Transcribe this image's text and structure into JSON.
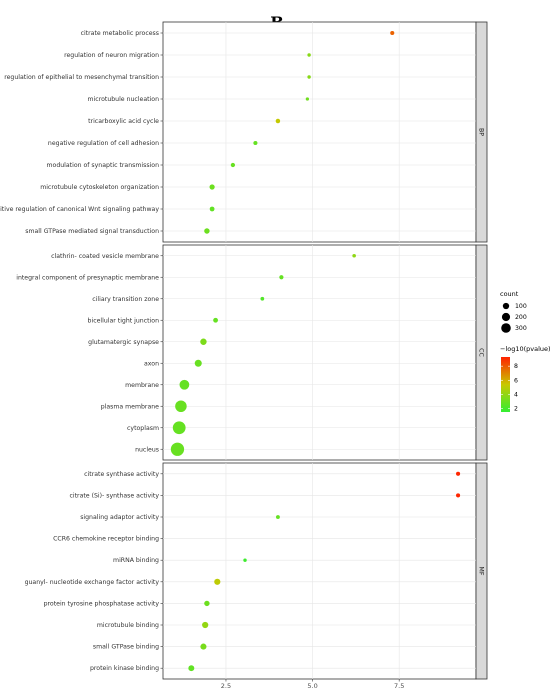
{
  "title": "B",
  "chart_data": {
    "type": "scatter",
    "title": "B",
    "xlabel": "",
    "ylabel": "",
    "xlim": [
      0,
      10
    ],
    "xticks": [
      2.5,
      5.0,
      7.5
    ],
    "xtick_labels": [
      "2.5",
      "5.0",
      "7.5"
    ],
    "size_legend": {
      "title": "count",
      "values": [
        100,
        200,
        300
      ],
      "labels": [
        "100",
        "200",
        "300"
      ]
    },
    "color_legend": {
      "title": "−log10(pvalue)",
      "min": 1.5,
      "max": 9.3,
      "ticks": [
        2,
        4,
        6,
        8
      ],
      "tick_labels": [
        "2",
        "4",
        "6",
        "8"
      ],
      "low_color": "#33ee33",
      "mid_color": "#c8c800",
      "high_color": "#ff2200"
    },
    "panels": [
      {
        "name": "BP",
        "terms": [
          {
            "label": "citrate metabolic process",
            "x": 7.3,
            "count": 8,
            "pvalue_log": 7.8
          },
          {
            "label": "regulation of neuron migration",
            "x": 4.9,
            "count": 3,
            "pvalue_log": 3.7
          },
          {
            "label": "regulation of epithelial to mesenchymal transition",
            "x": 4.9,
            "count": 3,
            "pvalue_log": 3.7
          },
          {
            "label": "microtubule nucleation",
            "x": 4.85,
            "count": 2,
            "pvalue_log": 3.1
          },
          {
            "label": "tricarboxylic acid cycle",
            "x": 4.0,
            "count": 12,
            "pvalue_log": 5.3
          },
          {
            "label": "negative regulation of cell adhesion",
            "x": 3.35,
            "count": 8,
            "pvalue_log": 2.8
          },
          {
            "label": "modulation of synaptic transmission",
            "x": 2.7,
            "count": 10,
            "pvalue_log": 2.9
          },
          {
            "label": "microtubule cytoskeleton organization",
            "x": 2.1,
            "count": 22,
            "pvalue_log": 3.0
          },
          {
            "label": "positive regulation of canonical Wnt signaling pathway",
            "x": 2.1,
            "count": 16,
            "pvalue_log": 2.7
          },
          {
            "label": "small GTPase mediated signal transduction",
            "x": 1.95,
            "count": 26,
            "pvalue_log": 3.0
          }
        ]
      },
      {
        "name": "CC",
        "terms": [
          {
            "label": "clathrin- coated vesicle membrane",
            "x": 6.2,
            "count": 4,
            "pvalue_log": 3.9
          },
          {
            "label": "integral component of presynaptic membrane",
            "x": 4.1,
            "count": 9,
            "pvalue_log": 2.8
          },
          {
            "label": "ciliary transition zone",
            "x": 3.55,
            "count": 5,
            "pvalue_log": 2.3
          },
          {
            "label": "bicellular tight junction",
            "x": 2.2,
            "count": 16,
            "pvalue_log": 2.8
          },
          {
            "label": "glutamatergic synapse",
            "x": 1.85,
            "count": 45,
            "pvalue_log": 3.4
          },
          {
            "label": "axon",
            "x": 1.7,
            "count": 60,
            "pvalue_log": 2.9
          },
          {
            "label": "membrane",
            "x": 1.3,
            "count": 150,
            "pvalue_log": 2.8
          },
          {
            "label": "plasma membrane",
            "x": 1.2,
            "count": 230,
            "pvalue_log": 2.9
          },
          {
            "label": "cytoplasm",
            "x": 1.15,
            "count": 300,
            "pvalue_log": 2.8
          },
          {
            "label": "nucleus",
            "x": 1.1,
            "count": 330,
            "pvalue_log": 2.9
          }
        ]
      },
      {
        "name": "MF",
        "terms": [
          {
            "label": "citrate synthase activity",
            "x": 9.2,
            "count": 8,
            "pvalue_log": 9.2
          },
          {
            "label": "citrate (Si)- synthase activity",
            "x": 9.2,
            "count": 8,
            "pvalue_log": 9.2
          },
          {
            "label": "signaling adaptor activity",
            "x": 4.0,
            "count": 6,
            "pvalue_log": 2.8
          },
          {
            "label": "CCR6 chemokine receptor binding",
            "x": null,
            "count": null,
            "pvalue_log": null
          },
          {
            "label": "miRNA binding",
            "x": 3.05,
            "count": 3,
            "pvalue_log": 1.8
          },
          {
            "label": "guanyl- nucleotide exchange factor activity",
            "x": 2.25,
            "count": 40,
            "pvalue_log": 5.1
          },
          {
            "label": "protein tyrosine phosphatase activity",
            "x": 1.95,
            "count": 25,
            "pvalue_log": 3.0
          },
          {
            "label": "microtubule binding",
            "x": 1.9,
            "count": 40,
            "pvalue_log": 4.0
          },
          {
            "label": "small GTPase binding",
            "x": 1.85,
            "count": 38,
            "pvalue_log": 3.3
          },
          {
            "label": "protein kinase binding",
            "x": 1.5,
            "count": 35,
            "pvalue_log": 2.7
          }
        ]
      }
    ],
    "grid": true,
    "legend_position": "right"
  }
}
